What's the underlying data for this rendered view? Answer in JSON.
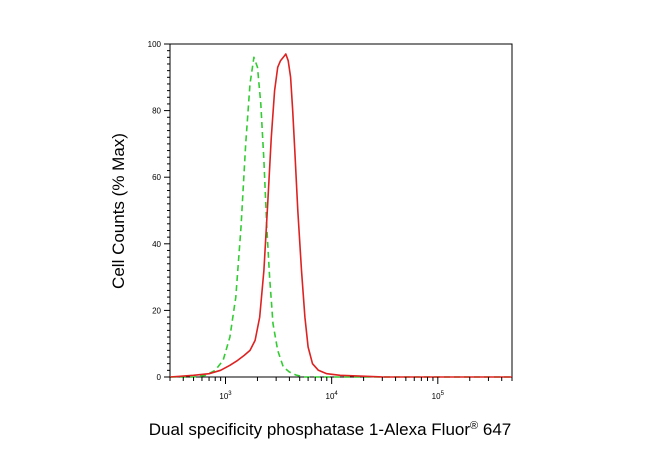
{
  "chart_data": {
    "type": "line",
    "title": "",
    "xlabel": "Dual specificity phosphatase 1-Alexa Fluor",
    "xlabel_sup": "®",
    "xlabel_suffix": " 647",
    "ylabel": "Cell Counts (% Max)",
    "x_scale": "log",
    "xlim": [
      300,
      500000
    ],
    "ylim": [
      0,
      100
    ],
    "y_ticks": [
      0,
      20,
      40,
      60,
      80,
      100
    ],
    "x_ticks": [
      {
        "base": "10",
        "exp": "3",
        "value": 1000
      },
      {
        "base": "10",
        "exp": "4",
        "value": 10000
      },
      {
        "base": "10",
        "exp": "5",
        "value": 100000
      }
    ],
    "grid": false,
    "legend": "none",
    "series": [
      {
        "color": "#33cc33",
        "style": "dashed",
        "x": [
          300,
          500,
          650,
          800,
          950,
          1100,
          1250,
          1400,
          1550,
          1700,
          1850,
          2000,
          2150,
          2300,
          2450,
          2600,
          2800,
          3100,
          3500,
          4000,
          4600,
          5500,
          8000,
          20000,
          100000,
          500000
        ],
        "y": [
          0,
          0,
          0.5,
          2,
          5,
          12,
          24,
          45,
          70,
          88,
          96,
          93,
          82,
          65,
          45,
          30,
          16,
          8,
          3,
          1.5,
          0.6,
          0,
          0,
          0,
          0,
          0
        ]
      },
      {
        "color": "#dd2222",
        "style": "solid",
        "x": [
          300,
          500,
          700,
          900,
          1100,
          1300,
          1500,
          1700,
          1900,
          2100,
          2300,
          2500,
          2700,
          2900,
          3100,
          3300,
          3500,
          3700,
          3900,
          4100,
          4300,
          4500,
          4800,
          5200,
          5600,
          6000,
          6600,
          7500,
          9000,
          12000,
          30000,
          100000,
          500000
        ],
        "y": [
          0,
          0.5,
          1,
          2,
          3.5,
          5,
          6.5,
          8,
          11,
          18,
          32,
          52,
          72,
          86,
          93,
          95,
          96,
          97,
          95,
          90,
          80,
          68,
          50,
          32,
          18,
          9,
          4,
          2,
          1,
          0.5,
          0,
          0,
          0
        ]
      }
    ]
  }
}
